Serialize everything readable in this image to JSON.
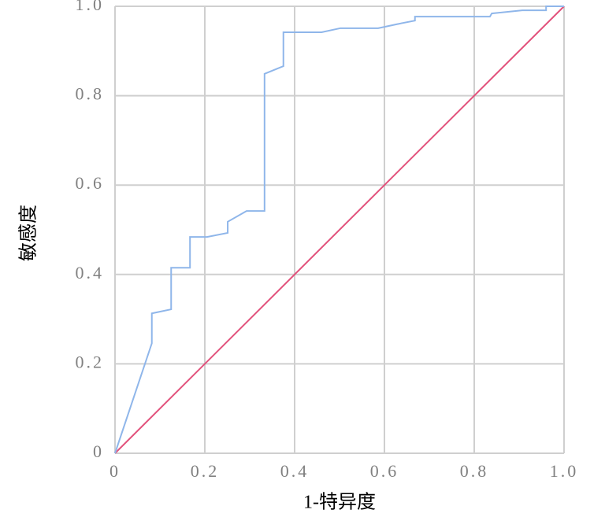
{
  "chart_data": {
    "type": "line",
    "x_label": "1-特异度",
    "y_label": "敏感度",
    "xlim": [
      0,
      1
    ],
    "ylim": [
      0,
      1
    ],
    "xticks": [
      0,
      0.2,
      0.4,
      0.6,
      0.8,
      {
        "value": 1,
        "label": "1.0"
      }
    ],
    "yticks": [
      0,
      0.2,
      0.4,
      0.6,
      0.8,
      {
        "value": 1,
        "label": "1.0"
      }
    ],
    "grid": true,
    "series": [
      {
        "color": "#8fb6ea",
        "x": [
          0,
          0.082,
          0.082,
          0.125,
          0.125,
          0.167,
          0.167,
          0.205,
          0.251,
          0.251,
          0.293,
          0.333,
          0.333,
          0.375,
          0.375,
          0.46,
          0.502,
          0.586,
          0.628,
          0.668,
          0.668,
          0.835,
          0.839,
          0.907,
          0.96,
          0.96,
          1
        ],
        "y": [
          0,
          0.246,
          0.313,
          0.322,
          0.415,
          0.415,
          0.484,
          0.484,
          0.493,
          0.518,
          0.542,
          0.542,
          0.849,
          0.866,
          0.942,
          0.942,
          0.951,
          0.951,
          0.96,
          0.968,
          0.977,
          0.977,
          0.984,
          0.991,
          0.991,
          1,
          1
        ]
      },
      {
        "color": "#e2527c",
        "x": [
          0,
          1
        ],
        "y": [
          0,
          1
        ]
      }
    ]
  }
}
